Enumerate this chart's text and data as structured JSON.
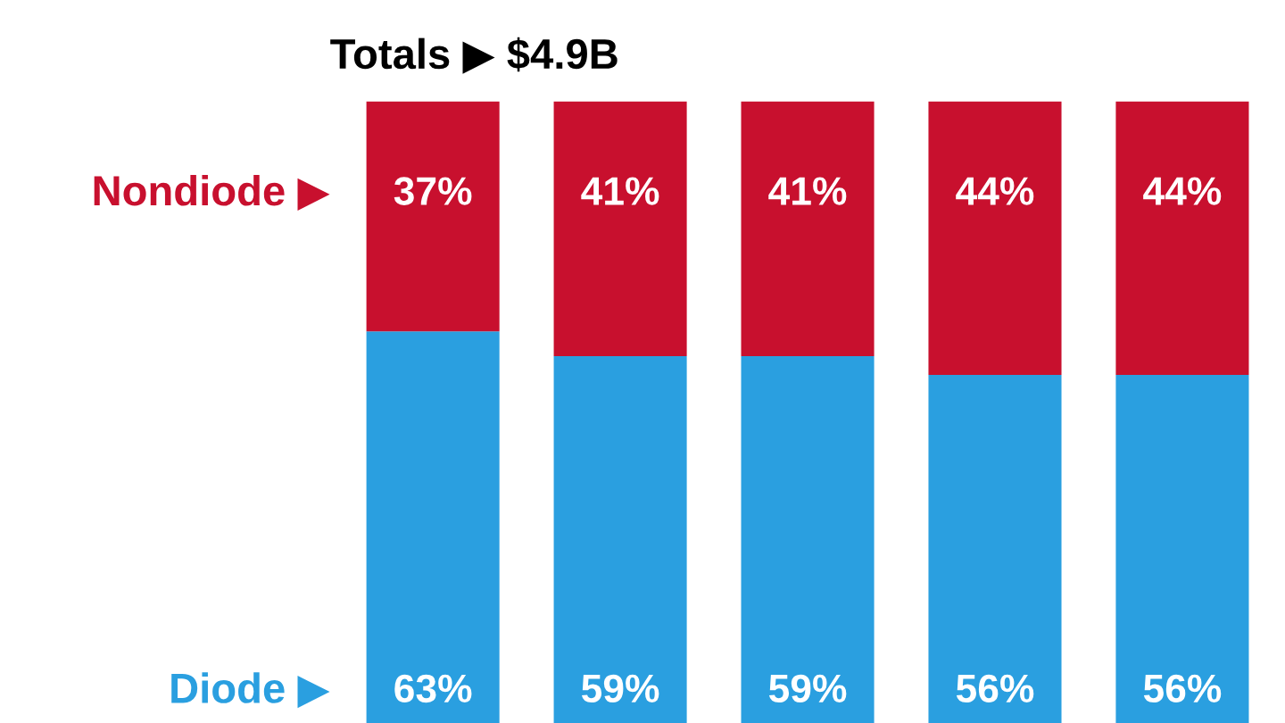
{
  "chart_data": {
    "type": "bar",
    "stacked": true,
    "categories": [
      null,
      null,
      null,
      null,
      null
    ],
    "series": [
      {
        "name": "Diode ▶",
        "color": "#2a9fe0",
        "values": [
          63,
          59,
          59,
          56,
          56
        ],
        "value_labels": [
          "63%",
          "59%",
          "59%",
          "56%",
          "56%"
        ]
      },
      {
        "name": "Nondiode ▶",
        "color": "#c8102e",
        "values": [
          37,
          41,
          41,
          44,
          44
        ],
        "value_labels": [
          "37%",
          "41%",
          "41%",
          "44%",
          "44%"
        ]
      }
    ],
    "annotations": [
      "Totals ▶ $4.9B"
    ],
    "legend": false,
    "tick_labels": false
  }
}
